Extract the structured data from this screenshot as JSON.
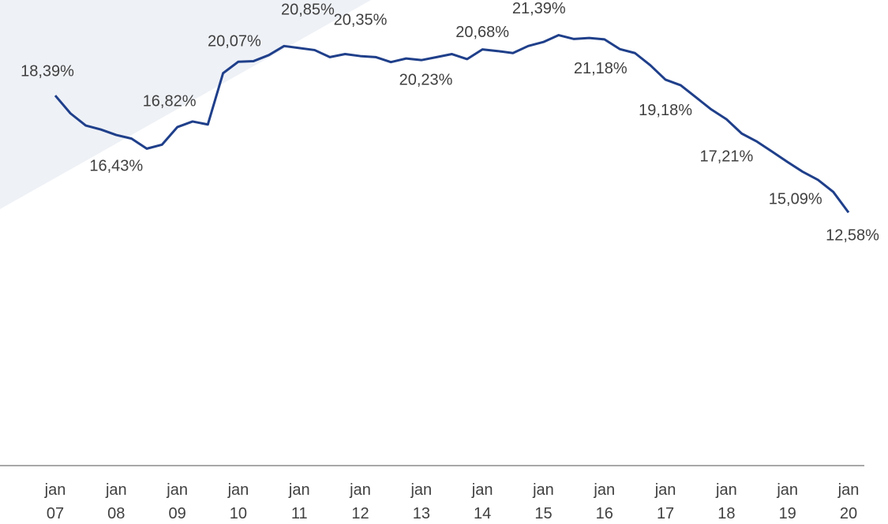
{
  "chart_data": {
    "type": "line",
    "categories": [
      "jan 07",
      null,
      null,
      null,
      "jan 08",
      null,
      null,
      null,
      "jan 09",
      null,
      null,
      null,
      "jan 10",
      null,
      null,
      null,
      "jan 11",
      null,
      null,
      null,
      "jan 12",
      null,
      null,
      null,
      "jan 13",
      null,
      null,
      null,
      "jan 14",
      null,
      null,
      null,
      "jan 15",
      null,
      null,
      null,
      "jan 16",
      null,
      null,
      null,
      "jan 17",
      null,
      null,
      null,
      "jan 18",
      null,
      null,
      null,
      "jan 19",
      null,
      null,
      null,
      "jan 20"
    ],
    "series": [
      {
        "color": "#1f3f8a",
        "values": [
          18.39,
          17.5,
          16.9,
          16.7,
          16.43,
          16.25,
          15.75,
          15.95,
          16.82,
          17.1,
          16.95,
          19.5,
          20.07,
          20.1,
          20.4,
          20.85,
          20.75,
          20.65,
          20.3,
          20.45,
          20.35,
          20.3,
          20.05,
          20.23,
          20.15,
          20.3,
          20.45,
          20.2,
          20.68,
          20.6,
          20.5,
          20.85,
          21.05,
          21.39,
          21.2,
          21.25,
          21.18,
          20.7,
          20.5,
          19.9,
          19.18,
          18.9,
          18.3,
          17.7,
          17.21,
          16.5,
          16.1,
          15.6,
          15.09,
          14.6,
          14.2,
          13.6,
          12.58
        ],
        "value_labels": [
          "18,39%",
          null,
          null,
          null,
          "16,43%",
          null,
          null,
          null,
          "16,82%",
          null,
          null,
          null,
          "20,07%",
          null,
          null,
          "20,85%",
          null,
          null,
          null,
          null,
          "20,35%",
          null,
          null,
          "20,23%",
          null,
          null,
          null,
          null,
          "20,68%",
          null,
          null,
          null,
          null,
          "21,39%",
          null,
          null,
          "21,18%",
          null,
          null,
          null,
          "19,18%",
          null,
          null,
          null,
          "17,21%",
          null,
          null,
          null,
          "15,09%",
          null,
          null,
          null,
          "12,58%"
        ]
      }
    ],
    "ylim": [
      0,
      23
    ]
  }
}
